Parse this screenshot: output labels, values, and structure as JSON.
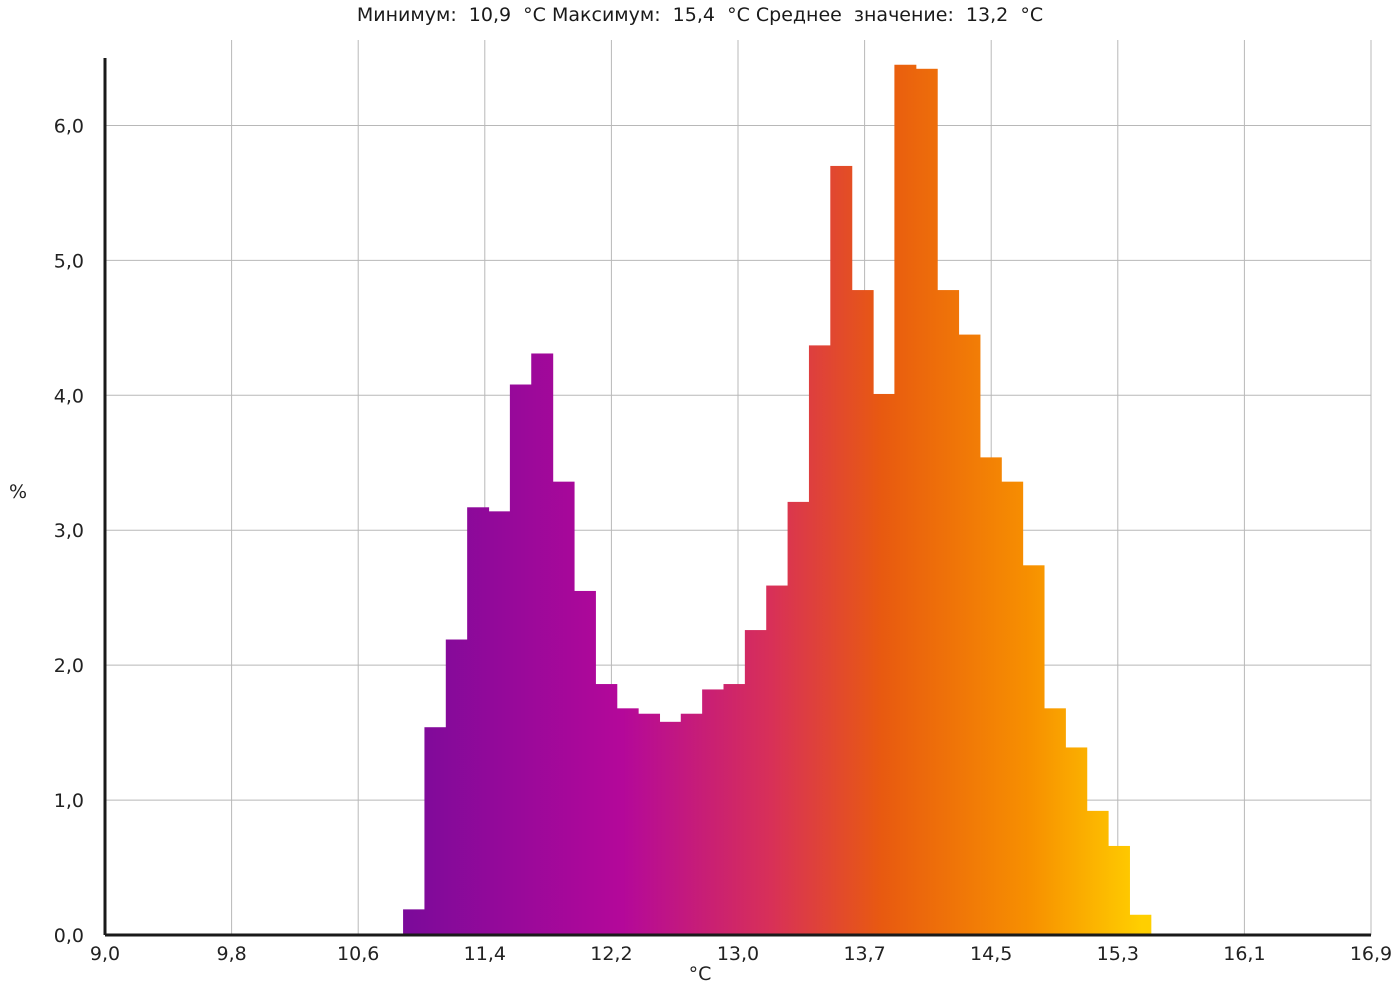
{
  "header": {
    "stats_text": "Минимум:  10,9  °C Максимум:  15,4  °C Среднее  значение:  13,2  °C"
  },
  "chart_data": {
    "type": "bar",
    "title": "",
    "xlabel": "°C",
    "ylabel": "%",
    "xlim": [
      9.0,
      16.9
    ],
    "ylim": [
      0,
      6.5
    ],
    "x_ticks": [
      "9,0",
      "9,8",
      "10,6",
      "11,4",
      "12,2",
      "13,0",
      "13,7",
      "14,5",
      "15,3",
      "16,1",
      "16,9"
    ],
    "y_ticks": [
      "0,0",
      "1,0",
      "2,0",
      "3,0",
      "4,0",
      "5,0",
      "6,0"
    ],
    "grid": true,
    "bin_start": 10.86,
    "bin_width": 0.1333,
    "values": [
      0.19,
      1.54,
      2.19,
      3.17,
      3.14,
      4.08,
      4.31,
      3.36,
      2.55,
      1.86,
      1.68,
      1.64,
      1.58,
      1.64,
      1.82,
      1.86,
      2.26,
      2.59,
      3.21,
      4.37,
      5.7,
      4.78,
      4.01,
      6.45,
      6.42,
      4.78,
      4.45,
      3.54,
      3.36,
      2.74,
      1.68,
      1.39,
      0.92,
      0.66,
      0.15
    ],
    "colors": {
      "gradient_start": "#7a0a9a",
      "gradient_mid1": "#b4089a",
      "gradient_mid2": "#d83058",
      "gradient_mid3": "#e85a10",
      "gradient_mid4": "#f79000",
      "gradient_end": "#ffcf00",
      "grid": "#b8b8b8",
      "axis": "#1a1a1a"
    }
  }
}
